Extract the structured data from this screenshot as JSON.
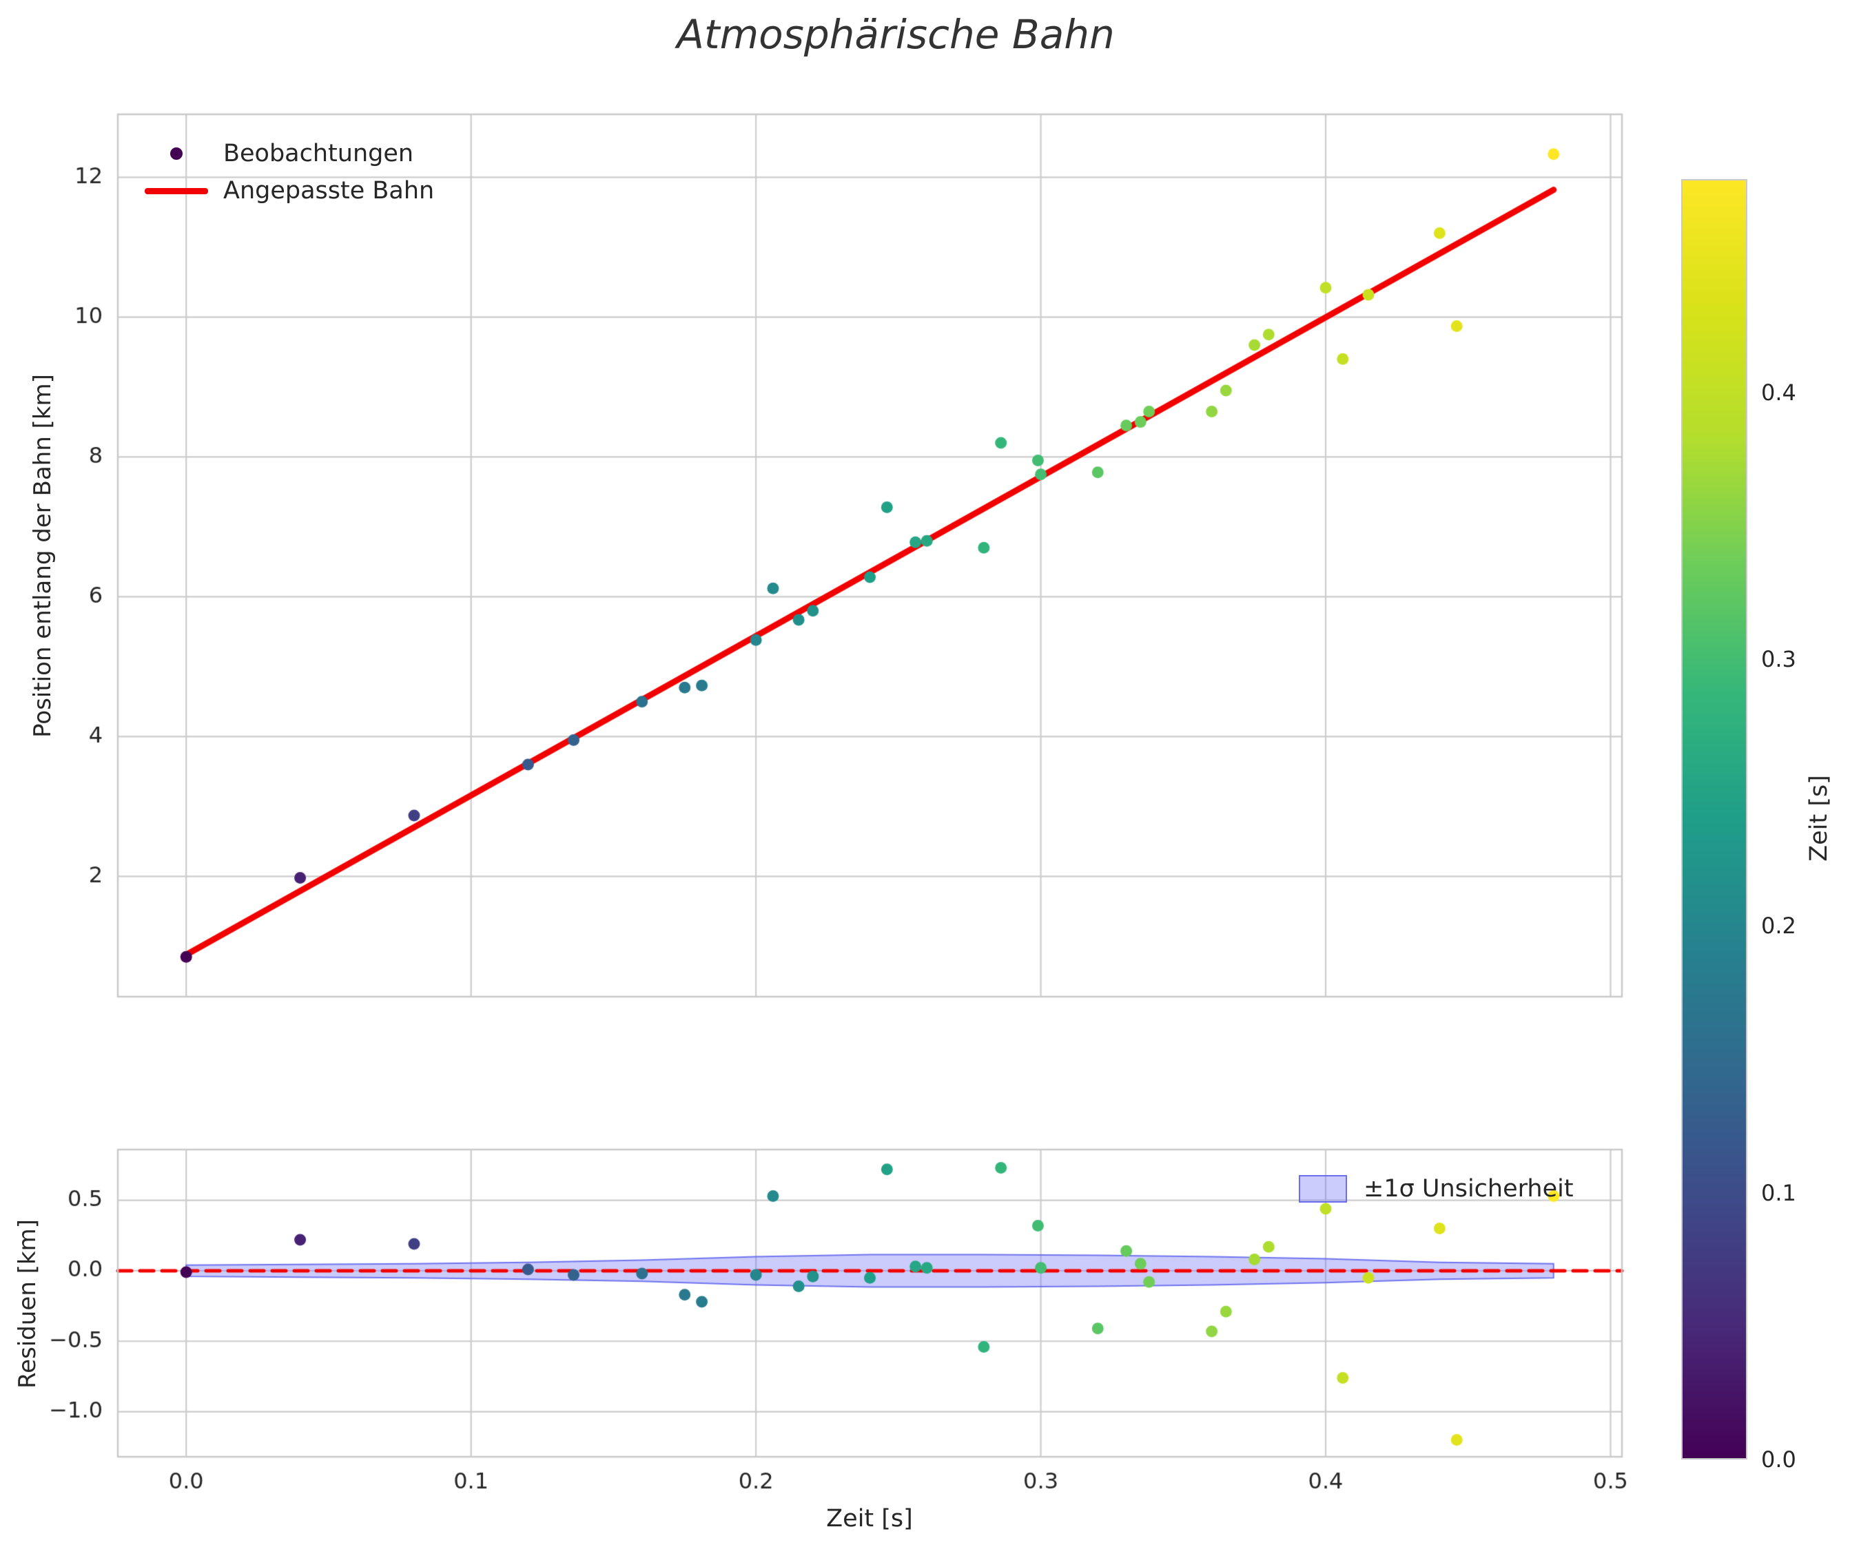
{
  "chart_data": {
    "type": "scatter",
    "title": "Atmosphärische Bahn",
    "colors": {
      "fit_line": "#f20000",
      "grid": "#cccccc",
      "spine": "#c9c9c9",
      "text": "#262626",
      "band_fill": "rgba(105,110,245,0.35)",
      "band_edge": "rgba(90,95,235,0.85)",
      "legend_marker": "#440154"
    },
    "main": {
      "ylabel": "Position entlang der Bahn [km]",
      "legend": [
        "Beobachtungen",
        "Angepasste Bahn"
      ],
      "xlim": [
        -0.024,
        0.504
      ],
      "ylim": [
        0.28,
        12.9
      ],
      "yticks": [
        2,
        4,
        6,
        8,
        10,
        12
      ],
      "points_t": [
        0.0,
        0.04,
        0.08,
        0.12,
        0.136,
        0.16,
        0.175,
        0.181,
        0.2,
        0.206,
        0.215,
        0.22,
        0.24,
        0.246,
        0.256,
        0.26,
        0.28,
        0.286,
        0.299,
        0.3,
        0.32,
        0.33,
        0.335,
        0.338,
        0.36,
        0.365,
        0.375,
        0.38,
        0.4,
        0.406,
        0.415,
        0.44,
        0.446,
        0.48
      ],
      "points_y": [
        0.85,
        1.98,
        2.87,
        3.6,
        3.95,
        4.5,
        4.7,
        4.73,
        5.38,
        6.12,
        5.67,
        5.8,
        6.28,
        7.28,
        6.78,
        6.8,
        6.7,
        8.2,
        7.95,
        7.75,
        7.78,
        8.45,
        8.5,
        8.65,
        8.65,
        8.95,
        9.6,
        9.75,
        10.42,
        9.4,
        10.32,
        11.2,
        9.87,
        12.33
      ],
      "fit_line": {
        "t": [
          0.0,
          0.48
        ],
        "y": [
          0.88,
          11.82
        ]
      }
    },
    "residual": {
      "xlabel": "Zeit [s]",
      "ylabel": "Residuen [km]",
      "legend": [
        "±1σ Unsicherheit"
      ],
      "xlim": [
        -0.024,
        0.504
      ],
      "ylim": [
        -1.32,
        0.86
      ],
      "xticks": [
        0.0,
        0.1,
        0.2,
        0.3,
        0.4,
        0.5
      ],
      "xtick_labels": [
        "0.0",
        "0.1",
        "0.2",
        "0.3",
        "0.4",
        "0.5"
      ],
      "yticks": [
        0.5,
        0.0,
        -0.5,
        -1.0
      ],
      "ytick_labels": [
        "0.5",
        "0.0",
        "−0.5",
        "−1.0"
      ],
      "zero_line": 0.0,
      "residuals": [
        -0.01,
        0.22,
        0.19,
        0.01,
        -0.03,
        -0.02,
        -0.17,
        -0.22,
        -0.03,
        0.53,
        -0.11,
        -0.04,
        -0.05,
        0.72,
        0.03,
        0.02,
        -0.54,
        0.73,
        0.32,
        0.02,
        -0.41,
        0.14,
        0.05,
        -0.08,
        -0.43,
        -0.29,
        0.08,
        0.17,
        0.44,
        -0.76,
        -0.05,
        0.3,
        -1.2,
        0.53
      ],
      "band_t": [
        0.0,
        0.04,
        0.08,
        0.12,
        0.16,
        0.2,
        0.24,
        0.28,
        0.32,
        0.36,
        0.4,
        0.44,
        0.48
      ],
      "band_sigma": [
        0.04,
        0.045,
        0.05,
        0.06,
        0.075,
        0.1,
        0.115,
        0.115,
        0.11,
        0.1,
        0.085,
        0.06,
        0.05
      ]
    },
    "colorbar": {
      "label": "Zeit [s]",
      "vmin": 0.0,
      "vmax": 0.48,
      "tick_values": [
        0.0,
        0.1,
        0.2,
        0.3,
        0.4
      ],
      "tick_labels": [
        "0.0",
        "0.1",
        "0.2",
        "0.3",
        "0.4"
      ],
      "colormap": "viridis"
    }
  }
}
